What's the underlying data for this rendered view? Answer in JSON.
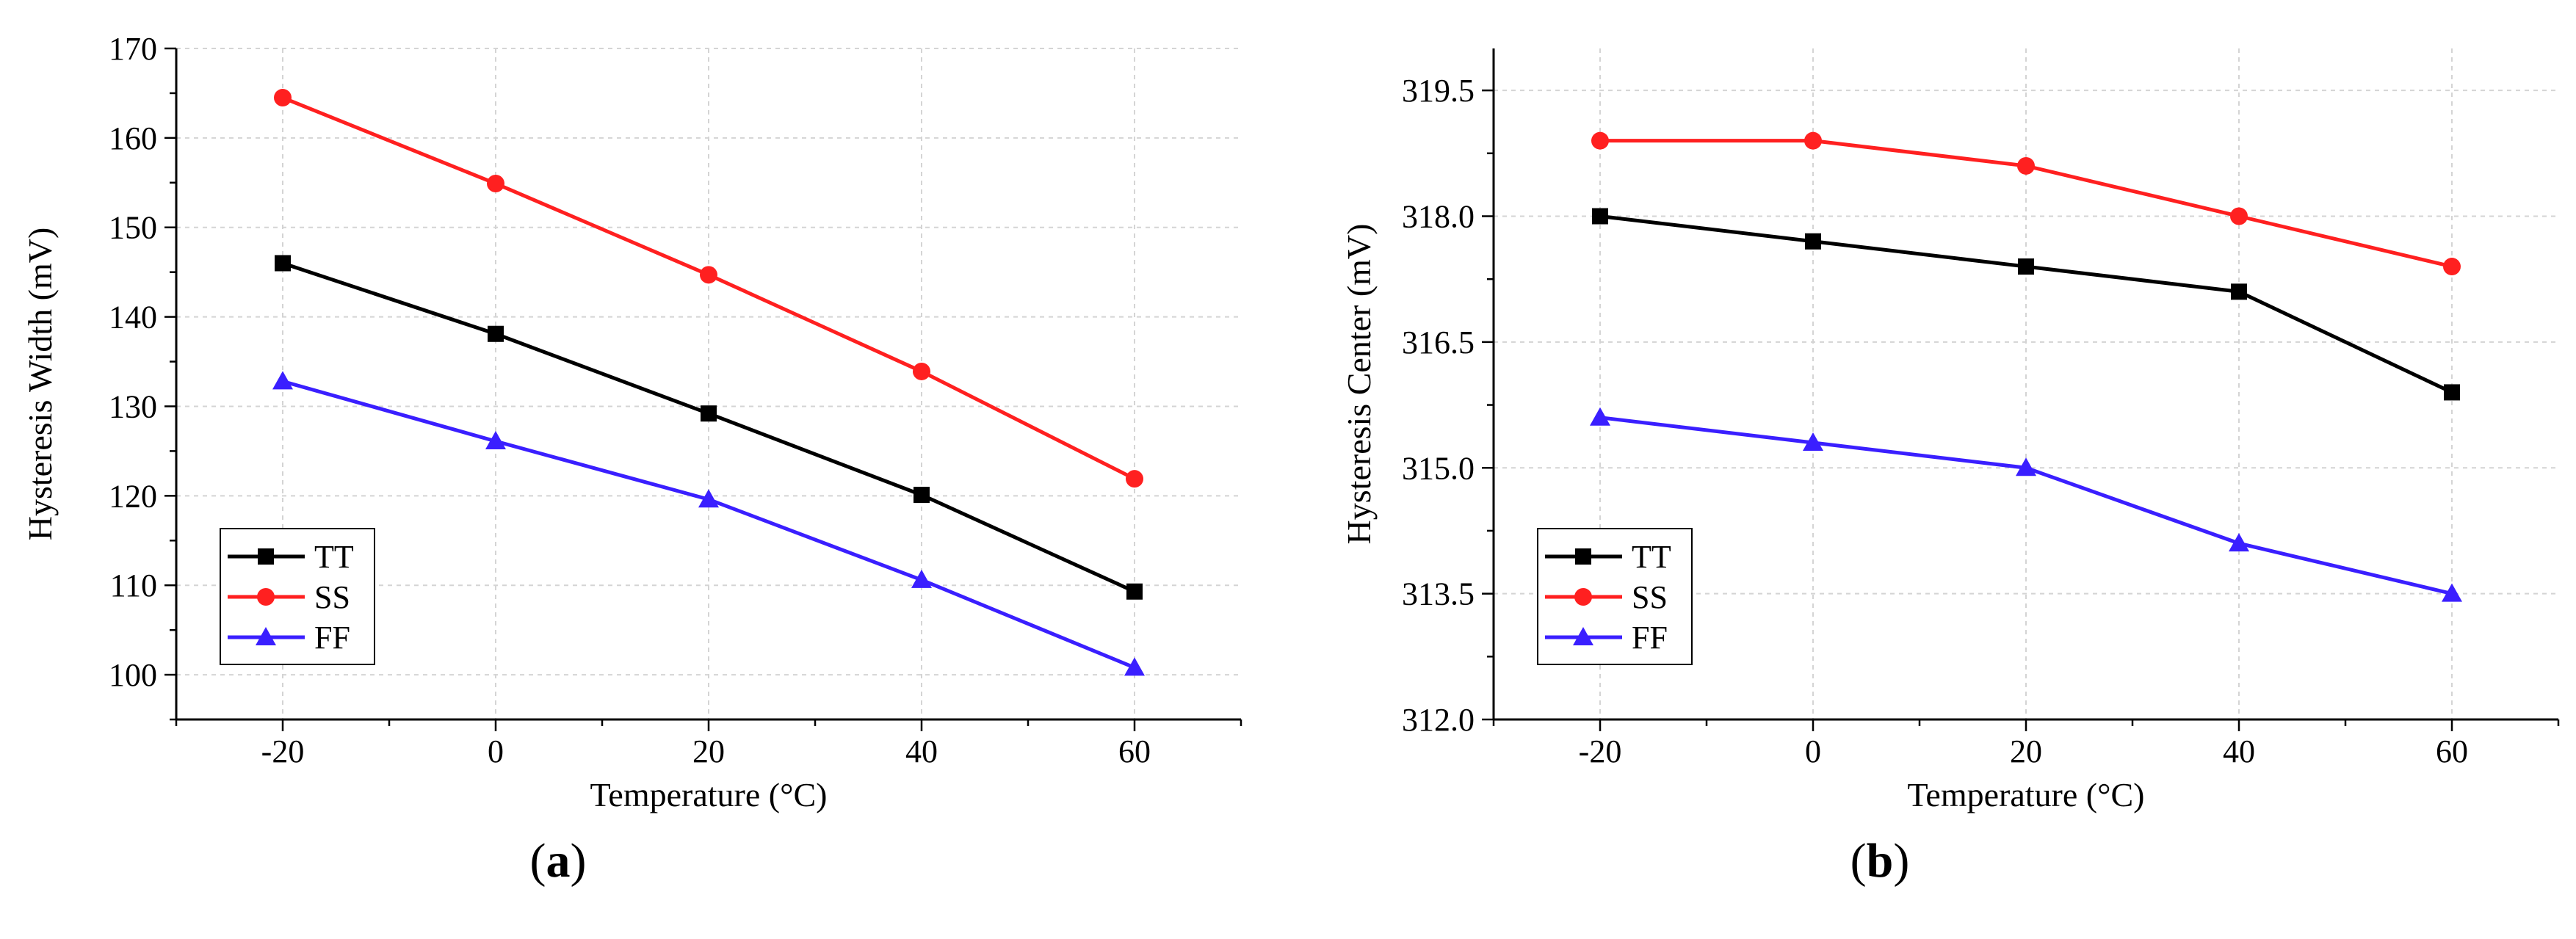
{
  "chart_data": [
    {
      "type": "line",
      "panel_label": "a",
      "xlabel": "Temperature (°C)",
      "ylabel": "Hysteresis Width (mV)",
      "x": [
        -20,
        0,
        20,
        40,
        60
      ],
      "xlim": [
        -30,
        70
      ],
      "ylim": [
        95,
        170
      ],
      "xticks": [
        -20,
        0,
        20,
        40,
        60
      ],
      "yticks": [
        100,
        110,
        120,
        130,
        140,
        150,
        160,
        170
      ],
      "ytick_labels": [
        "100",
        "110",
        "120",
        "130",
        "140",
        "150",
        "160",
        "170"
      ],
      "grid": true,
      "legend_position": "bottom-left",
      "series": [
        {
          "name": "TT",
          "color": "#000000",
          "marker": "square",
          "values": [
            146.0,
            138.1,
            129.2,
            120.1,
            109.3
          ]
        },
        {
          "name": "SS",
          "color": "#ff2020",
          "marker": "circle",
          "values": [
            164.5,
            154.9,
            144.7,
            133.9,
            121.9
          ]
        },
        {
          "name": "FF",
          "color": "#3a1fff",
          "marker": "triangle",
          "values": [
            132.8,
            126.1,
            119.6,
            110.6,
            100.8
          ]
        }
      ]
    },
    {
      "type": "line",
      "panel_label": "b",
      "xlabel": "Temperature (°C)",
      "ylabel": "Hysteresis Center (mV)",
      "x": [
        -20,
        0,
        20,
        40,
        60
      ],
      "xlim": [
        -30,
        70
      ],
      "ylim": [
        312.0,
        320.0
      ],
      "xticks": [
        -20,
        0,
        20,
        40,
        60
      ],
      "yticks": [
        312.0,
        313.5,
        315.0,
        316.5,
        318.0,
        319.5
      ],
      "ytick_labels": [
        "312.0",
        "313.5",
        "315.0",
        "316.5",
        "318.0",
        "319.5"
      ],
      "grid": true,
      "legend_position": "bottom-left",
      "series": [
        {
          "name": "TT",
          "color": "#000000",
          "marker": "square",
          "values": [
            318.0,
            317.7,
            317.4,
            317.1,
            315.9
          ]
        },
        {
          "name": "SS",
          "color": "#ff2020",
          "marker": "circle",
          "values": [
            318.9,
            318.9,
            318.6,
            318.0,
            317.4
          ]
        },
        {
          "name": "FF",
          "color": "#3a1fff",
          "marker": "triangle",
          "values": [
            315.6,
            315.3,
            315.0,
            314.1,
            313.5
          ]
        }
      ]
    }
  ]
}
